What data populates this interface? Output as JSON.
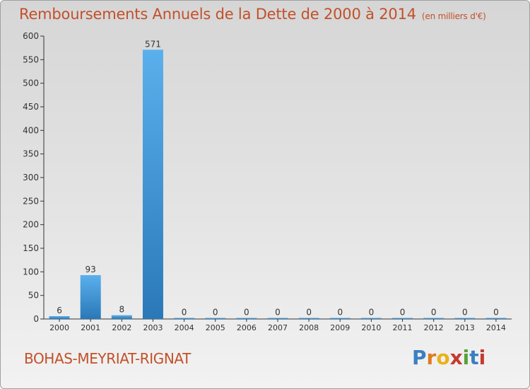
{
  "header": {
    "title": "Remboursements Annuels de la Dette de 2000 à 2014",
    "unit": "(en milliers d'€)"
  },
  "footer": {
    "commune": "BOHAS-MEYRIAT-RIGNAT",
    "logo": "Proxiti",
    "logo_letters": [
      "P",
      "r",
      "o",
      "x",
      "i",
      "t",
      "i"
    ]
  },
  "colors": {
    "title": "#c2502a",
    "bar_light": "#5ab0ec",
    "bar_dark": "#2a78b8",
    "axis": "#333333"
  },
  "chart_data": {
    "type": "bar",
    "title": "Remboursements Annuels de la Dette de 2000 à 2014",
    "subtitle": "(en milliers d'€)",
    "xlabel": "",
    "ylabel": "",
    "categories": [
      "2000",
      "2001",
      "2002",
      "2003",
      "2004",
      "2005",
      "2006",
      "2007",
      "2008",
      "2009",
      "2010",
      "2011",
      "2012",
      "2013",
      "2014"
    ],
    "values": [
      6,
      93,
      8,
      571,
      0,
      0,
      0,
      0,
      0,
      0,
      0,
      0,
      0,
      0,
      0
    ],
    "data_labels": [
      "6",
      "93",
      "8",
      "571",
      "0",
      "0",
      "0",
      "0",
      "0",
      "0",
      "0",
      "0",
      "0",
      "0",
      "0"
    ],
    "ylim": [
      0,
      600
    ],
    "yticks": [
      0,
      50,
      100,
      150,
      200,
      250,
      300,
      350,
      400,
      450,
      500,
      550,
      600
    ],
    "grid": false,
    "legend": "none"
  }
}
